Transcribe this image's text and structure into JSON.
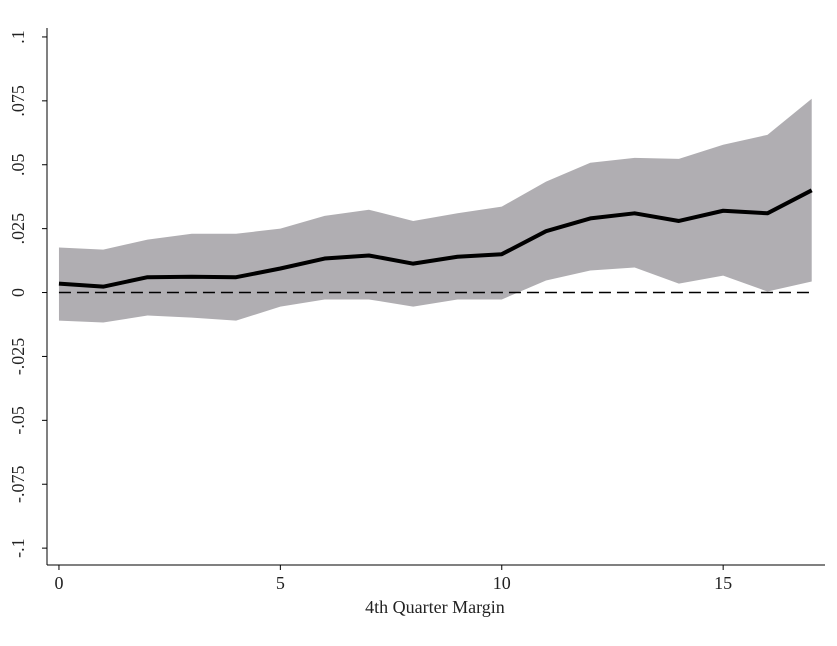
{
  "chart_data": {
    "type": "line",
    "xlabel": "4th Quarter Margin",
    "x": [
      0,
      1,
      2,
      3,
      4,
      5,
      6,
      7,
      8,
      9,
      10,
      11,
      12,
      13,
      14,
      15,
      16,
      17
    ],
    "values": [
      0.0035,
      0.0023,
      0.006,
      0.0062,
      0.006,
      0.0094,
      0.0133,
      0.0145,
      0.0113,
      0.014,
      0.015,
      0.024,
      0.029,
      0.031,
      0.028,
      0.032,
      0.031,
      0.04
    ],
    "ci_upper": [
      0.0176,
      0.0168,
      0.0207,
      0.023,
      0.023,
      0.025,
      0.03,
      0.0324,
      0.028,
      0.031,
      0.0336,
      0.0434,
      0.0508,
      0.0527,
      0.0523,
      0.0578,
      0.0617,
      0.0758
    ],
    "ci_lower": [
      -0.011,
      -0.0117,
      -0.009,
      -0.0098,
      -0.011,
      -0.0055,
      -0.0027,
      -0.0027,
      -0.0055,
      -0.0027,
      -0.0027,
      0.0047,
      0.0086,
      0.0098,
      0.0035,
      0.0066,
      0.0004,
      0.0043
    ],
    "color": "#000000",
    "band_color": "#b0aeb2",
    "reference_line": 0,
    "xlim": [
      -0.27,
      17.3
    ],
    "ylim": [
      -0.1066,
      0.1035
    ],
    "xticks": [
      0,
      5,
      10,
      15
    ],
    "yticks": [
      {
        "value": -0.1,
        "label": "-.1"
      },
      {
        "value": -0.075,
        "label": "-.075"
      },
      {
        "value": -0.05,
        "label": "-.05"
      },
      {
        "value": -0.025,
        "label": "-.025"
      },
      0,
      {
        "value": 0.025,
        "label": ".025"
      },
      {
        "value": 0.05,
        "label": ".05"
      },
      {
        "value": 0.075,
        "label": ".075"
      },
      {
        "value": 0.1,
        "label": ".1"
      }
    ]
  }
}
